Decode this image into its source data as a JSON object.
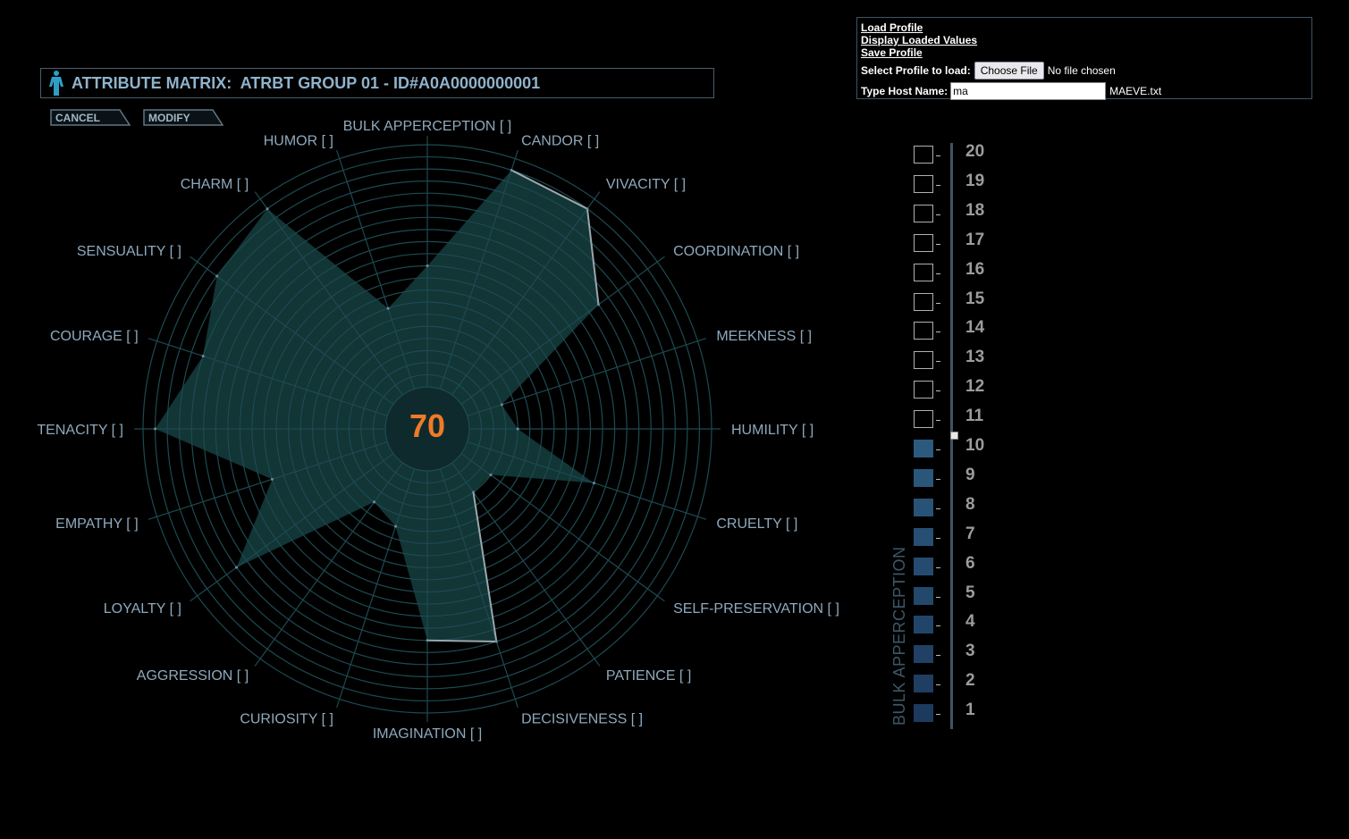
{
  "header": {
    "title": "ATTRIBUTE MATRIX:  ATRBT GROUP 01 - ID#A0A0000000001"
  },
  "buttons": {
    "cancel": "CANCEL",
    "modify": "MODIFY"
  },
  "profile_panel": {
    "load_profile": "Load Profile",
    "display_loaded": "Display Loaded Values",
    "save_profile": "Save Profile",
    "select_label": "Select Profile to load:",
    "choose_file": "Choose File",
    "no_file": "No file chosen",
    "host_label": "Type Host Name:",
    "host_value": "ma",
    "host_suffix": "MAEVE.txt"
  },
  "center_score": "70",
  "selected_attribute": "BULK APPERCEPTION",
  "selected_value": 10,
  "levels": [
    "20",
    "19",
    "18",
    "17",
    "16",
    "15",
    "14",
    "13",
    "12",
    "11",
    "10",
    "9",
    "8",
    "7",
    "6",
    "5",
    "4",
    "3",
    "2",
    "1"
  ],
  "colors": {
    "fill": "#123536",
    "grid": "#1d4a52",
    "score": "#f07a28",
    "accent_outline": "#9aa7ad"
  },
  "chart_data": {
    "type": "radar",
    "scale": [
      0,
      20
    ],
    "attributes": [
      {
        "label": "BULK APPERCEPTION [  ]",
        "value": 10
      },
      {
        "label": "CANDOR [  ]",
        "value": 19
      },
      {
        "label": "VIVACITY [  ]",
        "value": 19
      },
      {
        "label": "COORDINATION [  ]",
        "value": 14
      },
      {
        "label": "MEEKNESS [  ]",
        "value": 3
      },
      {
        "label": "HUMILITY [  ]",
        "value": 4
      },
      {
        "label": "CRUELTY [  ]",
        "value": 11
      },
      {
        "label": "SELF-PRESERVATION [  ]",
        "value": 3
      },
      {
        "label": "PATIENCE [  ]",
        "value": 3
      },
      {
        "label": "DECISIVENESS [  ]",
        "value": 15
      },
      {
        "label": "IMAGINATION [  ]",
        "value": 14
      },
      {
        "label": "CURIOSITY [  ]",
        "value": 5
      },
      {
        "label": "AGGRESSION [  ]",
        "value": 4
      },
      {
        "label": "LOYALTY [  ]",
        "value": 16
      },
      {
        "label": "EMPATHY [  ]",
        "value": 10
      },
      {
        "label": "TENACITY [  ]",
        "value": 19
      },
      {
        "label": "COURAGE [  ]",
        "value": 16
      },
      {
        "label": "SENSUALITY [  ]",
        "value": 18
      },
      {
        "label": "CHARM [  ]",
        "value": 19
      },
      {
        "label": "HUMOR [  ]",
        "value": 7
      }
    ]
  }
}
